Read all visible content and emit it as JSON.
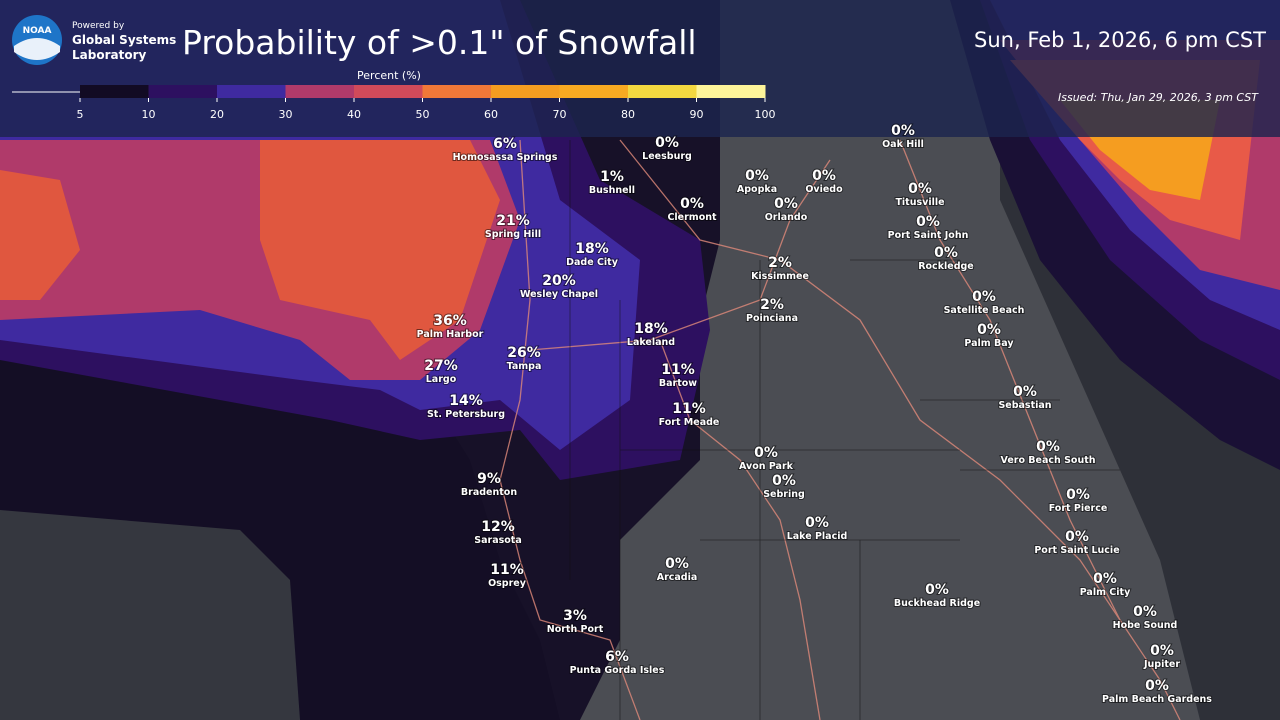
{
  "header": {
    "logo": "NOAA",
    "powered_by": "Powered by",
    "lab_line1": "Global Systems",
    "lab_line2": "Laboratory",
    "title": "Probability of >0.1\" of Snowfall",
    "valid_time": "Sun, Feb 1, 2026, 6 pm CST",
    "issued": "Issued: Thu, Jan 29, 2026, 3 pm CST"
  },
  "legend": {
    "title": "Percent (%)",
    "ticks": [
      5,
      10,
      20,
      30,
      40,
      50,
      60,
      70,
      80,
      90,
      100
    ],
    "colors": [
      "#120b24",
      "#2d1060",
      "#3f2aa0",
      "#b03a6a",
      "#d04a5a",
      "#f07838",
      "#f59d20",
      "#f8aa22",
      "#f3d840",
      "#fdf49a"
    ]
  },
  "cities": [
    {
      "pct": "6%",
      "name": "Homosassa Springs"
    },
    {
      "pct": "1%",
      "name": "Bushnell"
    },
    {
      "pct": "0%",
      "name": "Leesburg"
    },
    {
      "pct": "0%",
      "name": "Apopka"
    },
    {
      "pct": "0%",
      "name": "Oviedo"
    },
    {
      "pct": "0%",
      "name": "Oak Hill"
    },
    {
      "pct": "0%",
      "name": "Clermont"
    },
    {
      "pct": "0%",
      "name": "Orlando"
    },
    {
      "pct": "0%",
      "name": "Titusville"
    },
    {
      "pct": "21%",
      "name": "Spring Hill"
    },
    {
      "pct": "18%",
      "name": "Dade City"
    },
    {
      "pct": "0%",
      "name": "Port Saint John"
    },
    {
      "pct": "0%",
      "name": "Rockledge"
    },
    {
      "pct": "2%",
      "name": "Kissimmee"
    },
    {
      "pct": "20%",
      "name": "Wesley Chapel"
    },
    {
      "pct": "0%",
      "name": "Satellite Beach"
    },
    {
      "pct": "2%",
      "name": "Poinciana"
    },
    {
      "pct": "36%",
      "name": "Palm Harbor"
    },
    {
      "pct": "18%",
      "name": "Lakeland"
    },
    {
      "pct": "0%",
      "name": "Palm Bay"
    },
    {
      "pct": "26%",
      "name": "Tampa"
    },
    {
      "pct": "27%",
      "name": "Largo"
    },
    {
      "pct": "11%",
      "name": "Bartow"
    },
    {
      "pct": "0%",
      "name": "Sebastian"
    },
    {
      "pct": "14%",
      "name": "St. Petersburg"
    },
    {
      "pct": "11%",
      "name": "Fort Meade"
    },
    {
      "pct": "0%",
      "name": "Avon Park"
    },
    {
      "pct": "0%",
      "name": "Vero Beach South"
    },
    {
      "pct": "0%",
      "name": "Sebring"
    },
    {
      "pct": "9%",
      "name": "Bradenton"
    },
    {
      "pct": "0%",
      "name": "Fort Pierce"
    },
    {
      "pct": "0%",
      "name": "Lake Placid"
    },
    {
      "pct": "12%",
      "name": "Sarasota"
    },
    {
      "pct": "0%",
      "name": "Port Saint Lucie"
    },
    {
      "pct": "0%",
      "name": "Arcadia"
    },
    {
      "pct": "11%",
      "name": "Osprey"
    },
    {
      "pct": "0%",
      "name": "Palm City"
    },
    {
      "pct": "0%",
      "name": "Buckhead Ridge"
    },
    {
      "pct": "0%",
      "name": "Hobe Sound"
    },
    {
      "pct": "3%",
      "name": "North Port"
    },
    {
      "pct": "0%",
      "name": "Jupiter"
    },
    {
      "pct": "6%",
      "name": "Punta Gorda Isles"
    },
    {
      "pct": "0%",
      "name": "Palm Beach Gardens"
    }
  ]
}
